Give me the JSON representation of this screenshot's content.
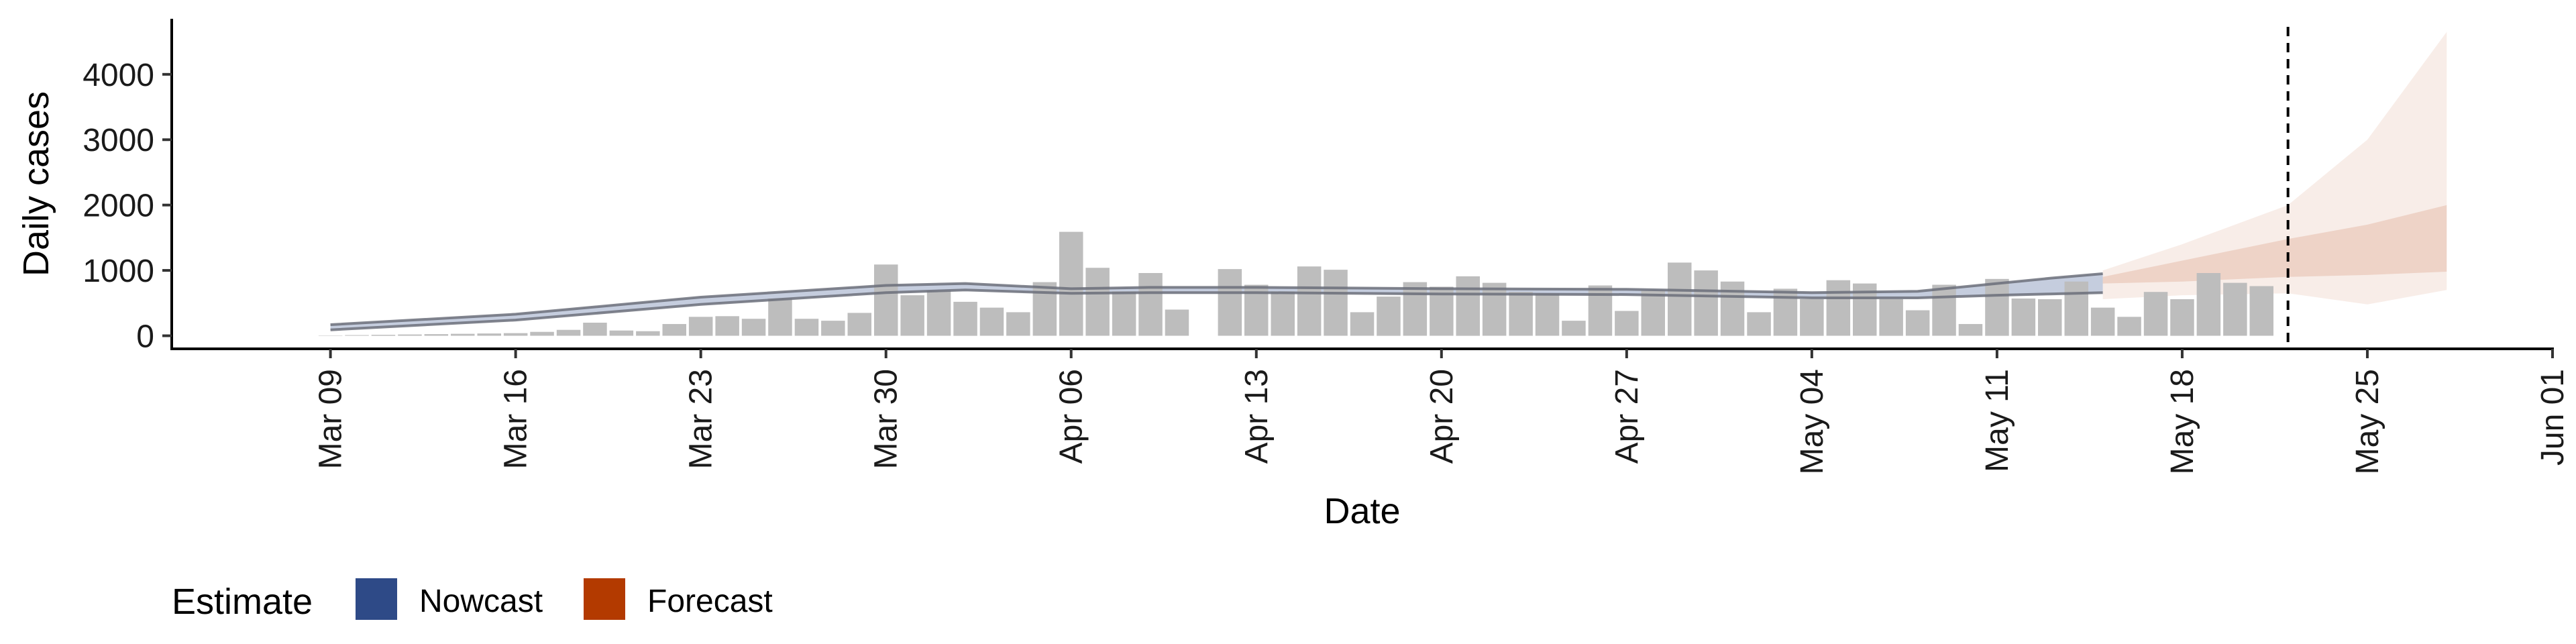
{
  "chart_data": {
    "type": "bar",
    "xlabel": "Date",
    "ylabel": "Daily cases",
    "ylim": [
      -200,
      4850
    ],
    "xlim": [
      "2020-03-03",
      "2020-06-01"
    ],
    "grid": false,
    "x_tick_labels": [
      "Mar 09",
      "Mar 16",
      "Mar 23",
      "Mar 30",
      "Apr 06",
      "Apr 13",
      "Apr 20",
      "Apr 27",
      "May 04",
      "May 11",
      "May 18",
      "May 25",
      "Jun 01"
    ],
    "x_ticks": [
      "2020-03-09",
      "2020-03-16",
      "2020-03-23",
      "2020-03-30",
      "2020-04-06",
      "2020-04-13",
      "2020-04-20",
      "2020-04-27",
      "2020-05-04",
      "2020-05-11",
      "2020-05-18",
      "2020-05-25",
      "2020-06-01"
    ],
    "y_ticks": [
      0,
      1000,
      2000,
      3000,
      4000
    ],
    "y_tick_labels": [
      "0",
      "1000",
      "2000",
      "3000",
      "4000"
    ],
    "vline_date": "2020-05-22",
    "legend": {
      "position": "bottom-left",
      "title": "Estimate",
      "entries": [
        {
          "label": "Nowcast",
          "color": "#2e4a87"
        },
        {
          "label": "Forecast",
          "color": "#b33a00"
        }
      ]
    },
    "colors": {
      "bars": "#bdbdbd",
      "nowcast": "#2e4a87",
      "forecast": "#b33a00",
      "axis": "#000000"
    },
    "series": [
      {
        "type": "bar",
        "dates": [
          "2020-03-09",
          "2020-03-10",
          "2020-03-11",
          "2020-03-12",
          "2020-03-13",
          "2020-03-14",
          "2020-03-15",
          "2020-03-16",
          "2020-03-17",
          "2020-03-18",
          "2020-03-19",
          "2020-03-20",
          "2020-03-21",
          "2020-03-22",
          "2020-03-23",
          "2020-03-24",
          "2020-03-25",
          "2020-03-26",
          "2020-03-27",
          "2020-03-28",
          "2020-03-29",
          "2020-03-30",
          "2020-03-31",
          "2020-04-01",
          "2020-04-02",
          "2020-04-03",
          "2020-04-04",
          "2020-04-05",
          "2020-04-06",
          "2020-04-07",
          "2020-04-08",
          "2020-04-09",
          "2020-04-10",
          "2020-04-11",
          "2020-04-12",
          "2020-04-13",
          "2020-04-14",
          "2020-04-15",
          "2020-04-16",
          "2020-04-17",
          "2020-04-18",
          "2020-04-19",
          "2020-04-20",
          "2020-04-21",
          "2020-04-22",
          "2020-04-23",
          "2020-04-24",
          "2020-04-25",
          "2020-04-26",
          "2020-04-27",
          "2020-04-28",
          "2020-04-29",
          "2020-04-30",
          "2020-05-01",
          "2020-05-02",
          "2020-05-03",
          "2020-05-04",
          "2020-05-05",
          "2020-05-06",
          "2020-05-07",
          "2020-05-08",
          "2020-05-09",
          "2020-05-10",
          "2020-05-11",
          "2020-05-12",
          "2020-05-13",
          "2020-05-14",
          "2020-05-15",
          "2020-05-16",
          "2020-05-17",
          "2020-05-18",
          "2020-05-19",
          "2020-05-20",
          "2020-05-21",
          "2020-05-22"
        ],
        "values": [
          5,
          10,
          15,
          20,
          25,
          30,
          35,
          40,
          60,
          90,
          200,
          80,
          70,
          180,
          290,
          300,
          260,
          570,
          260,
          230,
          350,
          1090,
          620,
          690,
          520,
          430,
          360,
          820,
          1590,
          1040,
          680,
          960,
          400,
          0,
          1020,
          780,
          680,
          1060,
          1010,
          360,
          600,
          820,
          750,
          910,
          810,
          670,
          650,
          230,
          770,
          380,
          690,
          1120,
          1000,
          830,
          360,
          720,
          560,
          850,
          800,
          560,
          390,
          780,
          180,
          870,
          570,
          560,
          830,
          430,
          290,
          670,
          560,
          960,
          810,
          760,
          0
        ]
      },
      {
        "type": "band",
        "name": "Nowcast",
        "dates": [
          "2020-03-09",
          "2020-03-16",
          "2020-03-23",
          "2020-03-30",
          "2020-04-02",
          "2020-04-06",
          "2020-04-09",
          "2020-04-13",
          "2020-04-20",
          "2020-04-27",
          "2020-05-04",
          "2020-05-08",
          "2020-05-11",
          "2020-05-13",
          "2020-05-15"
        ],
        "lower": [
          90,
          240,
          480,
          660,
          700,
          650,
          660,
          660,
          640,
          630,
          580,
          580,
          620,
          640,
          660
        ],
        "upper": [
          170,
          330,
          590,
          770,
          800,
          720,
          740,
          740,
          720,
          710,
          660,
          680,
          800,
          880,
          950
        ]
      },
      {
        "type": "band",
        "name": "Forecast",
        "dates": [
          "2020-05-15",
          "2020-05-18",
          "2020-05-22",
          "2020-05-25",
          "2020-05-28"
        ],
        "lower": [
          560,
          620,
          650,
          480,
          700
        ],
        "upper": [
          1000,
          1400,
          2000,
          3000,
          4650
        ]
      },
      {
        "type": "band",
        "name": "Forecast",
        "dates": [
          "2020-05-15",
          "2020-05-18",
          "2020-05-22",
          "2020-05-25",
          "2020-05-28"
        ],
        "lower": [
          800,
          830,
          900,
          930,
          980
        ],
        "upper": [
          900,
          1150,
          1480,
          1700,
          2000
        ]
      }
    ]
  }
}
